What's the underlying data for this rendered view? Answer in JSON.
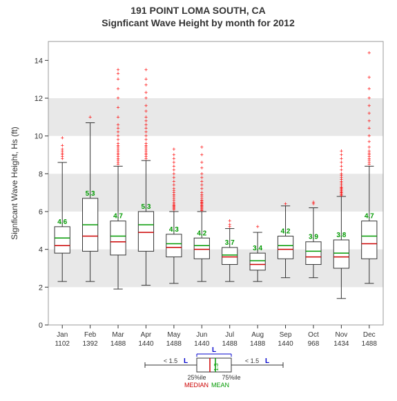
{
  "chart": {
    "type": "boxplot",
    "title_line1": "191   POINT LOMA SOUTH, CA",
    "title_line2": "Signficant Wave Height by month for 2012",
    "title_fontsize": 14,
    "ylabel": "Signficant Wave Height, Hs (ft)",
    "label_fontsize": 12,
    "ylim": [
      0,
      15
    ],
    "yticks": [
      0,
      2,
      4,
      6,
      8,
      10,
      12,
      14
    ],
    "background_color": "#ffffff",
    "band_color": "#e8e8e8",
    "plot_border_color": "#999999",
    "box_border_color": "#333333",
    "median_color": "#cc0000",
    "mean_color": "#009900",
    "whisker_color": "#333333",
    "outlier_color": "#ff0000",
    "outlier_marker": "+",
    "months": [
      {
        "label": "Jan",
        "count": 1102,
        "min": 2.3,
        "q1": 3.8,
        "median": 4.2,
        "q3": 5.2,
        "whisker_high": 8.6,
        "mean": 4.6,
        "outliers": [
          8.8,
          8.9,
          9.0,
          9.1,
          9.2,
          9.3,
          9.5,
          9.9
        ]
      },
      {
        "label": "Feb",
        "count": 1392,
        "min": 2.3,
        "q1": 3.9,
        "median": 4.7,
        "q3": 6.7,
        "whisker_high": 10.7,
        "mean": 5.3,
        "outliers": [
          11.0
        ]
      },
      {
        "label": "Mar",
        "count": 1488,
        "min": 1.9,
        "q1": 3.7,
        "median": 4.4,
        "q3": 5.5,
        "whisker_high": 8.4,
        "mean": 4.7,
        "outliers": [
          8.5,
          8.6,
          8.7,
          8.8,
          8.9,
          9.0,
          9.1,
          9.2,
          9.3,
          9.4,
          9.5,
          9.6,
          9.8,
          10.0,
          10.2,
          10.4,
          10.6,
          11.0,
          11.5,
          12.0,
          12.5,
          13.0,
          13.3,
          13.5
        ]
      },
      {
        "label": "Apr",
        "count": 1440,
        "min": 2.1,
        "q1": 3.9,
        "median": 4.9,
        "q3": 6.0,
        "whisker_high": 8.7,
        "mean": 5.3,
        "outliers": [
          8.8,
          8.9,
          9.0,
          9.1,
          9.2,
          9.3,
          9.4,
          9.5,
          9.6,
          9.8,
          10.0,
          10.2,
          10.4,
          10.6,
          10.8,
          11.0,
          11.3,
          11.6,
          12.0,
          12.3,
          12.7,
          13.0,
          13.5
        ]
      },
      {
        "label": "May",
        "count": 1488,
        "min": 2.2,
        "q1": 3.6,
        "median": 4.1,
        "q3": 4.8,
        "whisker_high": 6.0,
        "mean": 4.3,
        "outliers": [
          6.1,
          6.15,
          6.2,
          6.25,
          6.3,
          6.35,
          6.4,
          6.5,
          6.6,
          6.7,
          6.8,
          6.9,
          7.0,
          7.1,
          7.2,
          7.4,
          7.6,
          7.8,
          8.0,
          8.2,
          8.4,
          8.6,
          8.8,
          9.0,
          9.3
        ]
      },
      {
        "label": "Jun",
        "count": 1440,
        "min": 2.3,
        "q1": 3.5,
        "median": 4.0,
        "q3": 4.6,
        "whisker_high": 6.0,
        "mean": 4.2,
        "outliers": [
          6.05,
          6.1,
          6.15,
          6.2,
          6.25,
          6.3,
          6.35,
          6.4,
          6.45,
          6.5,
          6.55,
          6.6,
          6.7,
          6.8,
          6.9,
          7.0,
          7.2,
          7.4,
          7.6,
          7.8,
          8.0,
          8.3,
          8.6,
          9.0,
          9.4
        ]
      },
      {
        "label": "Jul",
        "count": 1488,
        "min": 2.3,
        "q1": 3.2,
        "median": 3.6,
        "q3": 4.1,
        "whisker_high": 5.1,
        "mean": 3.7,
        "outliers": [
          5.2,
          5.3,
          5.5
        ]
      },
      {
        "label": "Aug",
        "count": 1488,
        "min": 2.3,
        "q1": 2.9,
        "median": 3.2,
        "q3": 3.8,
        "whisker_high": 4.9,
        "mean": 3.4,
        "outliers": [
          5.2
        ]
      },
      {
        "label": "Sep",
        "count": 1440,
        "min": 2.5,
        "q1": 3.5,
        "median": 4.0,
        "q3": 4.7,
        "whisker_high": 6.3,
        "mean": 4.2,
        "outliers": [
          6.4
        ]
      },
      {
        "label": "Oct",
        "count": 968,
        "min": 2.5,
        "q1": 3.2,
        "median": 3.6,
        "q3": 4.4,
        "whisker_high": 6.2,
        "mean": 3.9,
        "outliers": [
          6.4,
          6.5
        ]
      },
      {
        "label": "Nov",
        "count": 1434,
        "min": 1.4,
        "q1": 3.0,
        "median": 3.6,
        "q3": 4.5,
        "whisker_high": 6.8,
        "mean": 3.8,
        "outliers": [
          6.85,
          6.9,
          6.95,
          7.0,
          7.05,
          7.1,
          7.15,
          7.2,
          7.25,
          7.3,
          7.4,
          7.5,
          7.6,
          7.7,
          7.8,
          7.9,
          8.0,
          8.2,
          8.4,
          8.6,
          8.8,
          9.0,
          9.2
        ]
      },
      {
        "label": "Dec",
        "count": 1488,
        "min": 2.2,
        "q1": 3.5,
        "median": 4.3,
        "q3": 5.5,
        "whisker_high": 8.4,
        "mean": 4.7,
        "outliers": [
          8.5,
          8.6,
          8.7,
          8.8,
          8.9,
          9.0,
          9.1,
          9.2,
          9.4,
          9.7,
          10.0,
          10.4,
          10.8,
          11.2,
          11.6,
          12.0,
          12.5,
          13.1,
          14.4
        ]
      }
    ],
    "legend": {
      "median_label": "MEDIAN",
      "mean_label": "MEAN",
      "q1_label": "25%ile",
      "q3_label": "75%ile",
      "whisker_label": "< 1.5 L",
      "iqr_label": "L",
      "mean_box_label": "1.3"
    }
  }
}
